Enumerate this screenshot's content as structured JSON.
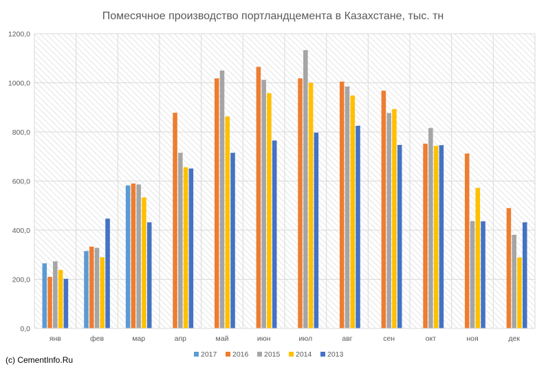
{
  "credit": "(c) CementInfo.Ru",
  "chart_data": {
    "type": "bar",
    "title": "Помесячное производство портландцемента в Казахстане, тыс. тн",
    "xlabel": "",
    "ylabel": "",
    "categories": [
      "янв",
      "фев",
      "мар",
      "апр",
      "май",
      "июн",
      "июл",
      "авг",
      "сен",
      "окт",
      "ноя",
      "дек"
    ],
    "ylim": [
      0,
      1200
    ],
    "yticks": [
      0,
      200,
      400,
      600,
      800,
      1000,
      1200
    ],
    "ytick_labels": [
      "0,0",
      "200,0",
      "400,0",
      "600,0",
      "800,0",
      "1000,0",
      "1200,0"
    ],
    "grid": true,
    "legend_position": "bottom",
    "series": [
      {
        "name": "2017",
        "color": "#5b9bd5",
        "values": [
          265,
          315,
          582,
          null,
          null,
          null,
          null,
          null,
          null,
          null,
          null,
          null
        ]
      },
      {
        "name": "2016",
        "color": "#ed7d31",
        "values": [
          210,
          333,
          590,
          878,
          1018,
          1065,
          1018,
          1005,
          968,
          752,
          712,
          490
        ]
      },
      {
        "name": "2015",
        "color": "#a5a5a5",
        "values": [
          273,
          328,
          586,
          715,
          1050,
          1012,
          1133,
          985,
          877,
          816,
          437,
          381
        ]
      },
      {
        "name": "2014",
        "color": "#ffc000",
        "values": [
          238,
          290,
          533,
          656,
          863,
          958,
          1000,
          948,
          893,
          743,
          572,
          289
        ]
      },
      {
        "name": "2013",
        "color": "#4472c4",
        "values": [
          202,
          447,
          432,
          651,
          715,
          765,
          797,
          825,
          747,
          746,
          436,
          432
        ]
      }
    ]
  }
}
